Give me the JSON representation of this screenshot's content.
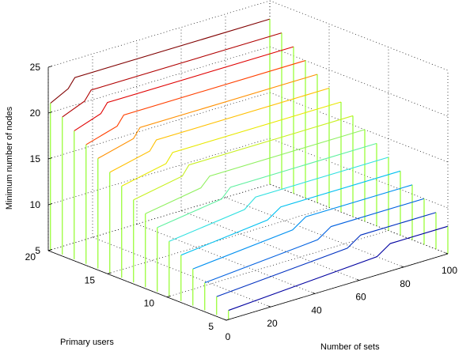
{
  "chart_data": {
    "type": "waterfall-3d",
    "xlabel": "Number of sets",
    "ylabel": "Primary users",
    "zlabel": "Minimum number of nodes",
    "x_ticks": [
      0,
      20,
      40,
      60,
      80,
      100
    ],
    "y_ticks": [
      5,
      10,
      15,
      20
    ],
    "z_ticks": [
      5,
      10,
      15,
      20,
      25
    ],
    "x_range": [
      0,
      100
    ],
    "y_range": [
      5,
      20
    ],
    "z_range": [
      5,
      25
    ],
    "grid": true,
    "x_values": [
      1,
      100
    ],
    "series": [
      {
        "primary_users": 20,
        "color": "#800000",
        "steps": [
          [
            9,
            22
          ],
          [
            12,
            23
          ]
        ],
        "start": 21
      },
      {
        "primary_users": 19,
        "color": "#B00000",
        "steps": [
          [
            11,
            21
          ],
          [
            14,
            22
          ]
        ],
        "start": 20
      },
      {
        "primary_users": 18,
        "color": "#E00000",
        "steps": [
          [
            13,
            20
          ],
          [
            16,
            21
          ]
        ],
        "start": 19
      },
      {
        "primary_users": 17,
        "color": "#FF4000",
        "steps": [
          [
            15,
            19
          ],
          [
            18,
            20
          ]
        ],
        "start": 18
      },
      {
        "primary_users": 16,
        "color": "#FF9000",
        "steps": [
          [
            17,
            18
          ],
          [
            20,
            19
          ]
        ],
        "start": 17
      },
      {
        "primary_users": 15,
        "color": "#FFC000",
        "steps": [
          [
            19,
            17
          ],
          [
            22,
            18
          ]
        ],
        "start": 16
      },
      {
        "primary_users": 14,
        "color": "#E8E800",
        "steps": [
          [
            21,
            16
          ],
          [
            24,
            17
          ]
        ],
        "start": 15
      },
      {
        "primary_users": 13,
        "color": "#C8F020",
        "steps": [
          [
            23,
            15
          ],
          [
            26,
            16
          ]
        ],
        "start": 14
      },
      {
        "primary_users": 12,
        "color": "#90F060",
        "steps": [
          [
            26,
            14
          ],
          [
            30,
            15
          ]
        ],
        "start": 13
      },
      {
        "primary_users": 11,
        "color": "#60F0A0",
        "steps": [
          [
            30,
            13
          ],
          [
            34,
            14
          ]
        ],
        "start": 12
      },
      {
        "primary_users": 10,
        "color": "#30E0E0",
        "steps": [
          [
            35,
            12
          ],
          [
            40,
            13
          ]
        ],
        "start": 11
      },
      {
        "primary_users": 9,
        "color": "#00C0F0",
        "steps": [
          [
            40,
            11
          ],
          [
            46,
            12
          ]
        ],
        "start": 10
      },
      {
        "primary_users": 8,
        "color": "#0090F0",
        "steps": [
          [
            46,
            10
          ],
          [
            52,
            11
          ]
        ],
        "start": 9
      },
      {
        "primary_users": 7,
        "color": "#0060E0",
        "steps": [
          [
            52,
            9
          ],
          [
            58,
            10
          ]
        ],
        "start": 8
      },
      {
        "primary_users": 6,
        "color": "#0030C0",
        "steps": [
          [
            60,
            8
          ],
          [
            66,
            9
          ]
        ],
        "start": 7
      },
      {
        "primary_users": 5,
        "color": "#0000A0",
        "steps": [
          [
            68,
            7
          ],
          [
            74,
            8
          ]
        ],
        "start": 6
      }
    ]
  }
}
